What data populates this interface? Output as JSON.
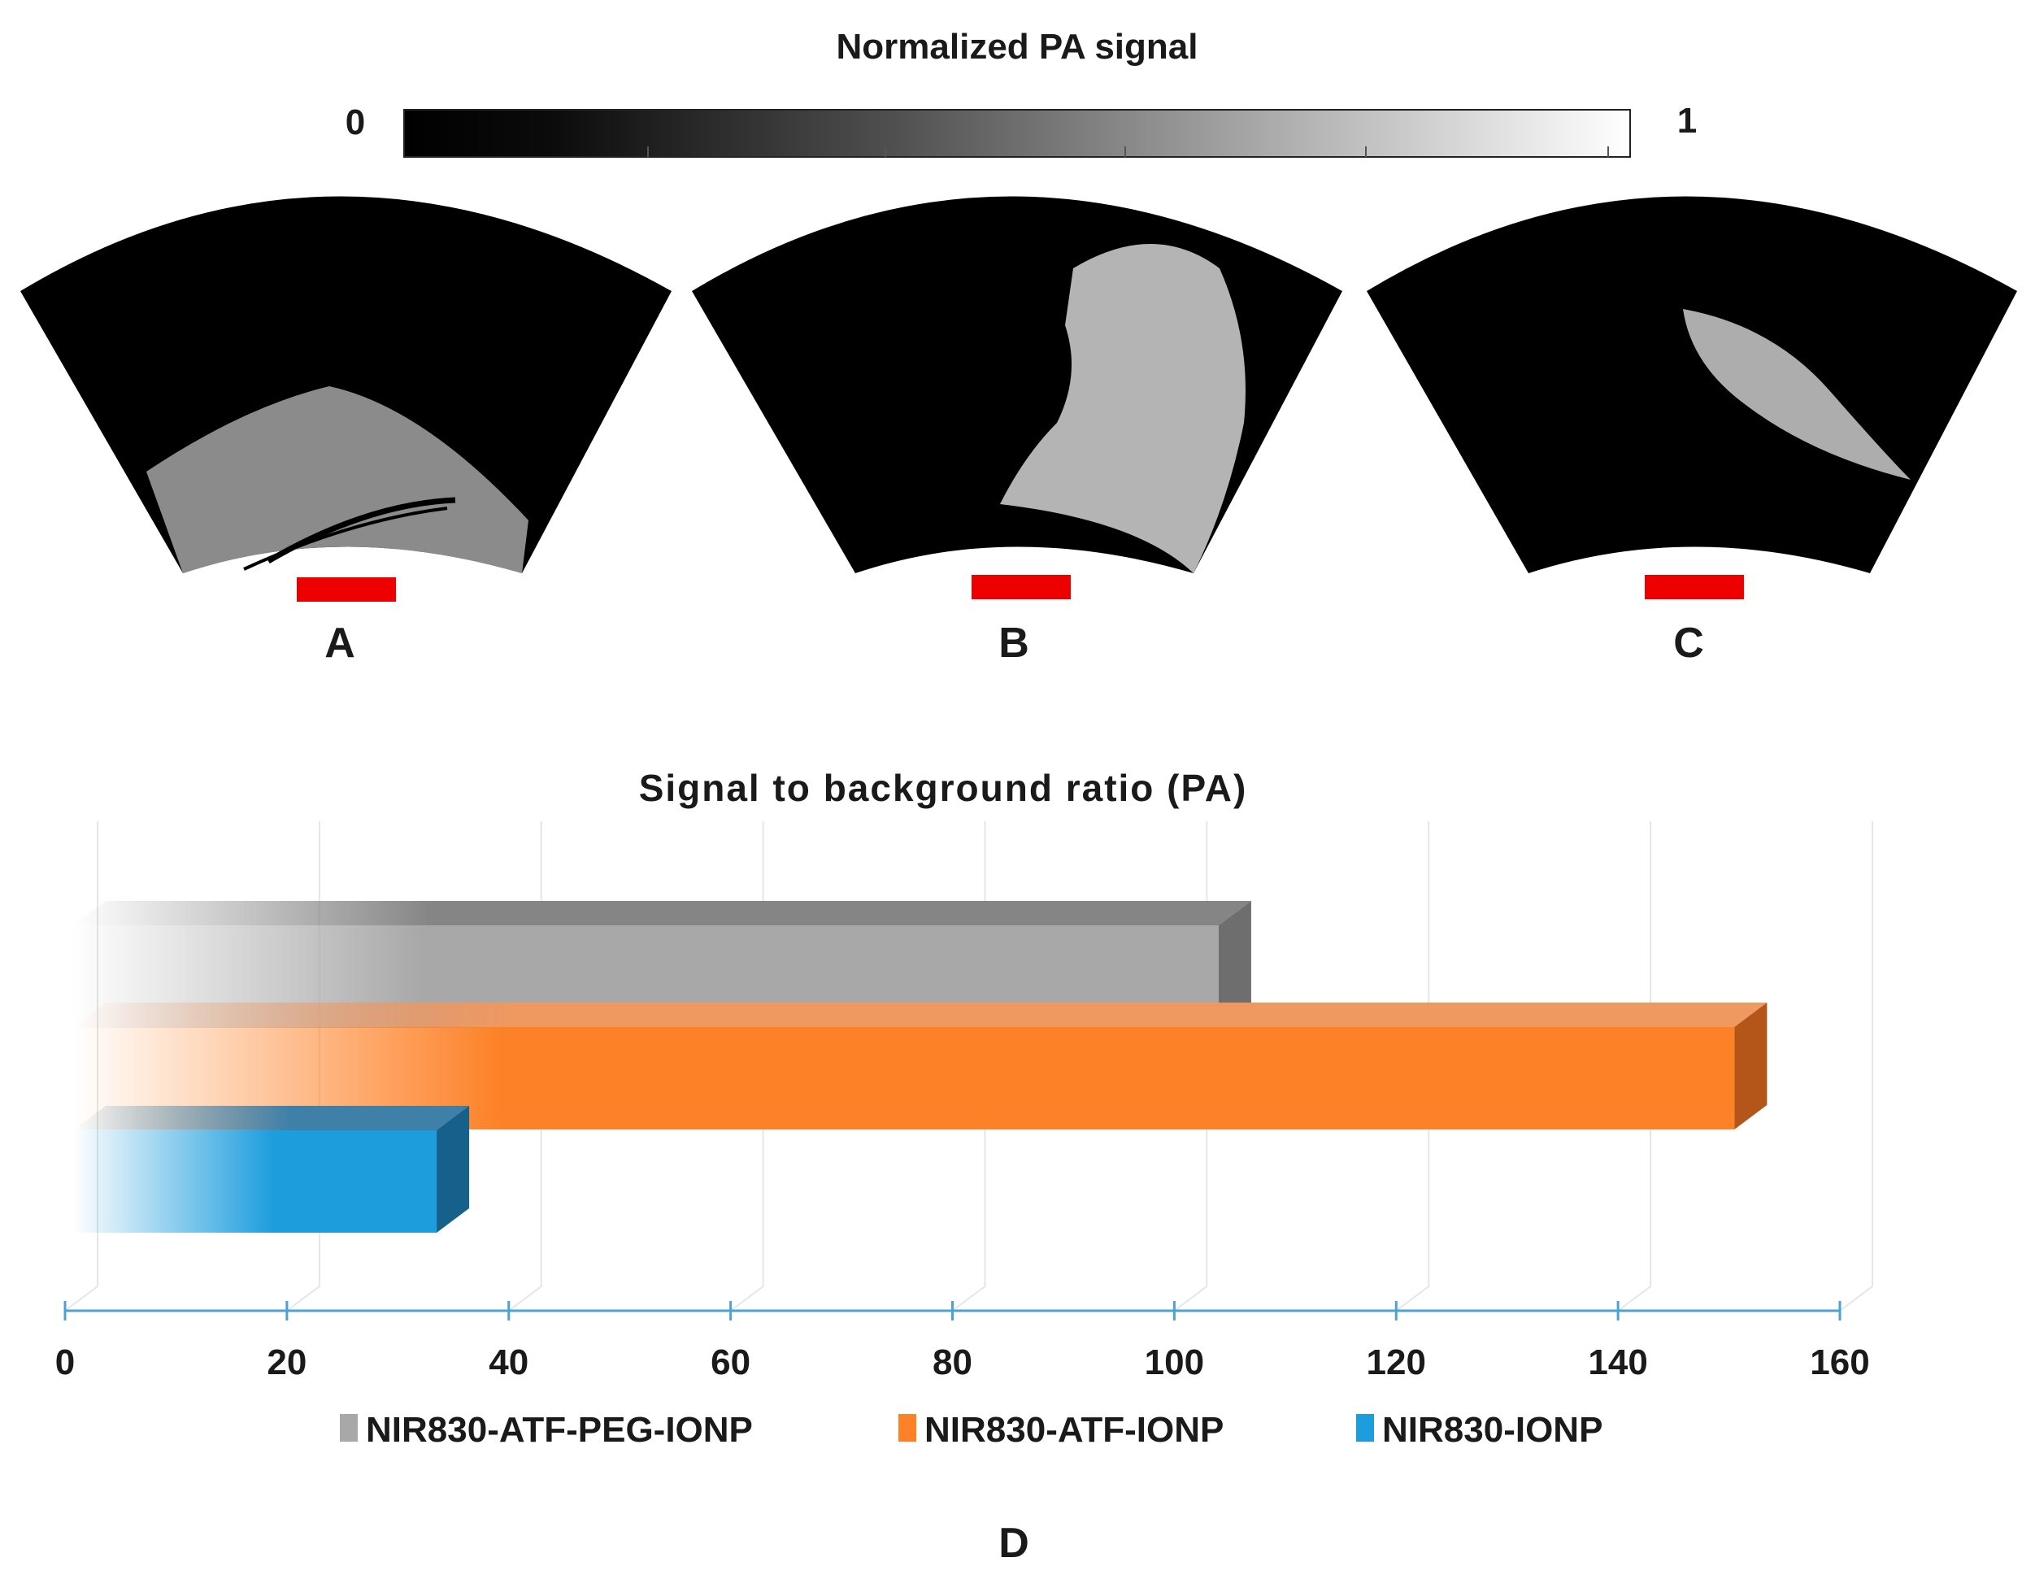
{
  "colorbar": {
    "title": "Normalized PA signal",
    "min_label": "0",
    "max_label": "1"
  },
  "panels": [
    {
      "label": "A",
      "scale_bar_color": "#ee0000"
    },
    {
      "label": "B",
      "scale_bar_color": "#ee0000"
    },
    {
      "label": "C",
      "scale_bar_color": "#ee0000"
    }
  ],
  "chart_data": {
    "type": "bar",
    "orientation": "horizontal",
    "title": "Signal to background ratio (PA)",
    "panel_label": "D",
    "xlabel": "",
    "ylabel": "",
    "xlim": [
      0,
      160
    ],
    "xticks": [
      0,
      20,
      40,
      60,
      80,
      100,
      120,
      140,
      160
    ],
    "grid": true,
    "legend_position": "bottom",
    "series": [
      {
        "name": "NIR830-ATF-PEG-IONP",
        "value": 104,
        "color": "#a8a8a8",
        "side_color": "#6e6e6e",
        "top_color": "#858585"
      },
      {
        "name": "NIR830-ATF-IONP",
        "value": 150.5,
        "color": "#fd8127",
        "side_color": "#b4561a",
        "top_color": "#ef9860"
      },
      {
        "name": "NIR830-IONP",
        "value": 33.5,
        "color": "#1e9ddd",
        "side_color": "#15618c",
        "top_color": "#3e80a8"
      }
    ]
  }
}
